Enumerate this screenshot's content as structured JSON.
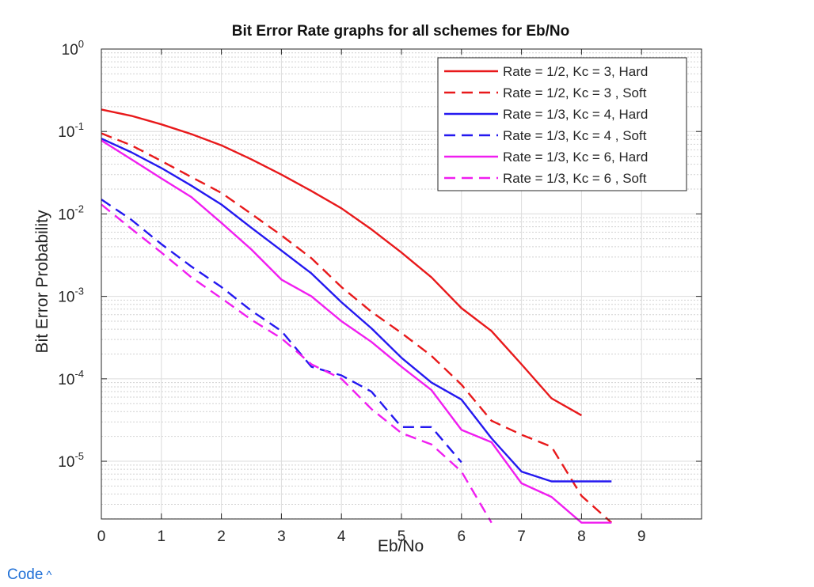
{
  "code_toggle": {
    "label": "Code",
    "icon": "chevron-up-icon",
    "glyph": "^"
  },
  "chart_data": {
    "type": "line",
    "title": "Bit Error Rate graphs for all schemes for Eb/No",
    "xlabel": "Eb/No",
    "ylabel": "Bit Error Probability",
    "xlim": [
      0,
      10
    ],
    "ylim_exponent": [
      -5.7,
      0
    ],
    "yscale": "log",
    "xticks": [
      0,
      1,
      2,
      3,
      4,
      5,
      6,
      7,
      8,
      9
    ],
    "yticks": [
      {
        "base": "10",
        "exp": "0",
        "value": 1
      },
      {
        "base": "10",
        "exp": "-1",
        "value": 0.1
      },
      {
        "base": "10",
        "exp": "-2",
        "value": 0.01
      },
      {
        "base": "10",
        "exp": "-3",
        "value": 0.001
      },
      {
        "base": "10",
        "exp": "-4",
        "value": 0.0001
      },
      {
        "base": "10",
        "exp": "-5",
        "value": 1e-05
      }
    ],
    "grid": true,
    "minor_grid": true,
    "legend_position": "top-right",
    "series": [
      {
        "name": "Rate = 1/2, Kc = 3, Hard",
        "color": "#e8191b",
        "dash": "solid",
        "x": [
          0,
          0.5,
          1,
          1.5,
          2,
          2.5,
          3,
          3.5,
          4,
          4.5,
          5,
          5.5,
          6,
          6.5,
          7,
          7.5,
          8
        ],
        "y": [
          0.185,
          0.155,
          0.122,
          0.093,
          0.068,
          0.046,
          0.03,
          0.019,
          0.0117,
          0.0065,
          0.0034,
          0.0017,
          0.00072,
          0.00038,
          0.00015,
          5.8e-05,
          3.6e-05
        ]
      },
      {
        "name": "Rate = 1/2, Kc = 3 , Soft",
        "color": "#e8191b",
        "dash": "dashed",
        "x": [
          0,
          0.5,
          1,
          1.5,
          2,
          2.5,
          3,
          3.5,
          4,
          4.5,
          5,
          5.5,
          6,
          6.5,
          7,
          7.5,
          8,
          8.5
        ],
        "y": [
          0.095,
          0.068,
          0.044,
          0.028,
          0.018,
          0.01,
          0.0055,
          0.0029,
          0.0013,
          0.00065,
          0.00036,
          0.00019,
          8.5e-05,
          3.1e-05,
          2.1e-05,
          1.5e-05,
          3.8e-06,
          1.8e-06
        ]
      },
      {
        "name": "Rate = 1/3, Kc = 4, Hard",
        "color": "#2418f0",
        "dash": "solid",
        "x": [
          0,
          0.5,
          1,
          1.5,
          2,
          2.5,
          3,
          3.5,
          4,
          4.5,
          5,
          5.5,
          6,
          6.5,
          7,
          7.5,
          8,
          8.5
        ],
        "y": [
          0.082,
          0.056,
          0.036,
          0.022,
          0.013,
          0.0068,
          0.0036,
          0.0019,
          0.00085,
          0.00041,
          0.00018,
          9e-05,
          5.6e-05,
          1.9e-05,
          7.5e-06,
          5.7e-06,
          5.7e-06,
          5.7e-06
        ]
      },
      {
        "name": "Rate = 1/3, Kc = 4 , Soft",
        "color": "#2418f0",
        "dash": "dashed",
        "x": [
          0,
          0.5,
          1,
          1.5,
          2,
          2.5,
          3,
          3.5,
          4,
          4.5,
          5,
          5.5,
          6
        ],
        "y": [
          0.015,
          0.0085,
          0.0043,
          0.0023,
          0.0013,
          0.00067,
          0.00038,
          0.00014,
          0.00011,
          7e-05,
          2.6e-05,
          2.6e-05,
          9.7e-06
        ]
      },
      {
        "name": "Rate = 1/3, Kc = 6, Hard",
        "color": "#f01ef0",
        "dash": "solid",
        "x": [
          0,
          0.5,
          1,
          1.5,
          2,
          2.5,
          3,
          3.5,
          4,
          4.5,
          5,
          5.5,
          6,
          6.5,
          7,
          7.5,
          8,
          8.5
        ],
        "y": [
          0.078,
          0.046,
          0.027,
          0.016,
          0.0078,
          0.0037,
          0.0016,
          0.001,
          0.0005,
          0.00028,
          0.00014,
          7.3e-05,
          2.4e-05,
          1.7e-05,
          5.4e-06,
          3.7e-06,
          1.8e-06,
          1.8e-06
        ]
      },
      {
        "name": "Rate = 1/3, Kc = 6 , Soft",
        "color": "#f01ef0",
        "dash": "dashed",
        "x": [
          0,
          0.5,
          1,
          1.5,
          2,
          2.5,
          3,
          3.5,
          4,
          4.5,
          5,
          5.5,
          6,
          6.5
        ],
        "y": [
          0.013,
          0.0066,
          0.0034,
          0.0017,
          0.00095,
          0.00052,
          0.00031,
          0.00015,
          0.0001,
          4.3e-05,
          2.2e-05,
          1.6e-05,
          7.5e-06,
          1.8e-06
        ]
      }
    ]
  }
}
